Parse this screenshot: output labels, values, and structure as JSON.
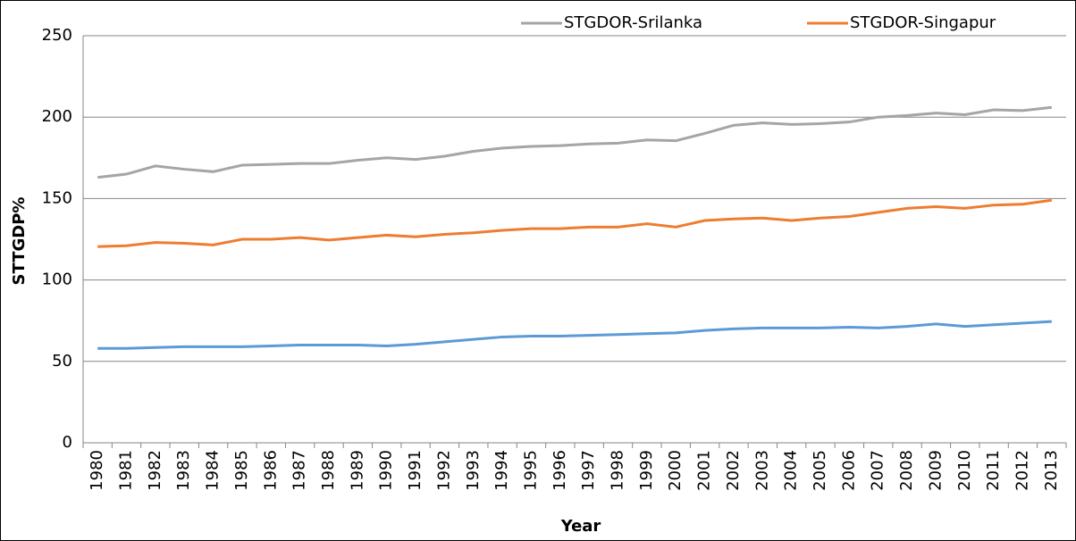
{
  "chart_data": {
    "type": "line",
    "x_label": "Year",
    "y_label": "STTGDP%",
    "categories": [
      "1980",
      "1981",
      "1982",
      "1983",
      "1984",
      "1985",
      "1986",
      "1987",
      "1988",
      "1989",
      "1990",
      "1991",
      "1992",
      "1993",
      "1994",
      "1995",
      "1996",
      "1997",
      "1998",
      "1999",
      "2000",
      "2001",
      "2002",
      "2003",
      "2004",
      "2005",
      "2006",
      "2007",
      "2008",
      "2009",
      "2010",
      "2011",
      "2012",
      "2013"
    ],
    "series": [
      {
        "name": "STGDOR-Srilanka",
        "color": "#a5a5a5",
        "values": [
          163,
          165,
          170,
          168,
          166.5,
          170.5,
          171,
          171.5,
          171.5,
          173.5,
          175,
          174,
          176,
          179,
          181,
          182,
          182.5,
          183.5,
          184,
          186,
          185.5,
          190,
          195,
          196.5,
          195.5,
          196,
          197,
          200,
          201,
          202.5,
          201.5,
          204.5,
          204,
          206
        ]
      },
      {
        "name": "STGDOR-Singapur",
        "color": "#ed7d31",
        "values": [
          120.5,
          121,
          123,
          122.5,
          121.5,
          125,
          125,
          126,
          124.5,
          126,
          127.5,
          126.5,
          128,
          129,
          130.5,
          131.5,
          131.5,
          132.5,
          132.5,
          134.5,
          132.5,
          136.5,
          137.5,
          138,
          136.5,
          138,
          139,
          141.5,
          144,
          145,
          144,
          146,
          146.5,
          149
        ]
      },
      {
        "color": "#5b9bd5",
        "values": [
          58,
          58,
          58.5,
          59,
          59,
          59,
          59.5,
          60,
          60,
          60,
          59.5,
          60.5,
          62,
          63.5,
          65,
          65.5,
          65.5,
          66,
          66.5,
          67,
          67.5,
          69,
          70,
          70.5,
          70.5,
          70.5,
          71,
          70.5,
          71.5,
          73,
          71.5,
          72.5,
          73.5,
          74.5
        ]
      }
    ],
    "ylim": [
      0,
      250
    ],
    "yticks": [
      0,
      50,
      100,
      150,
      200,
      250
    ],
    "grid": true,
    "legend": "top"
  }
}
